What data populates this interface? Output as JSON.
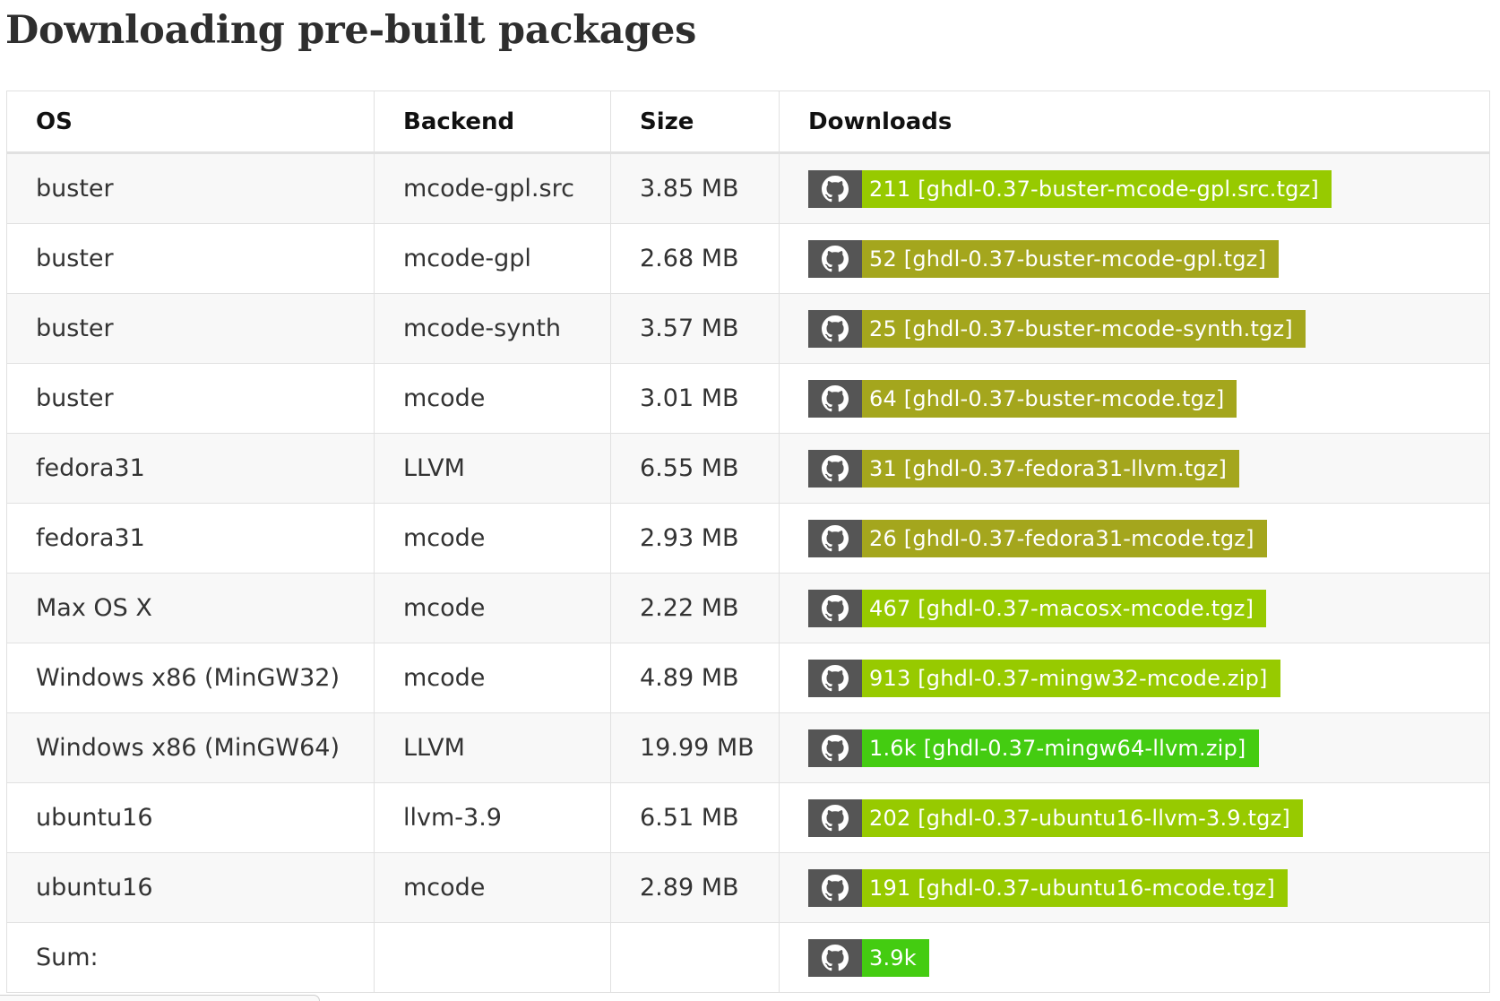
{
  "page": {
    "title": "Downloading pre-built packages"
  },
  "table": {
    "headers": {
      "os": "OS",
      "backend": "Backend",
      "size": "Size",
      "downloads": "Downloads"
    },
    "rows": [
      {
        "os": "buster",
        "backend": "mcode-gpl.src",
        "size": "3.85 MB",
        "badge": {
          "icon": "github-icon",
          "text": "211 [ghdl-0.37-buster-mcode-gpl.src.tgz]",
          "color": "#97ca00"
        }
      },
      {
        "os": "buster",
        "backend": "mcode-gpl",
        "size": "2.68 MB",
        "badge": {
          "icon": "github-icon",
          "text": "52 [ghdl-0.37-buster-mcode-gpl.tgz]",
          "color": "#a4a61d"
        }
      },
      {
        "os": "buster",
        "backend": "mcode-synth",
        "size": "3.57 MB",
        "badge": {
          "icon": "github-icon",
          "text": "25 [ghdl-0.37-buster-mcode-synth.tgz]",
          "color": "#a4a61d"
        }
      },
      {
        "os": "buster",
        "backend": "mcode",
        "size": "3.01 MB",
        "badge": {
          "icon": "github-icon",
          "text": "64 [ghdl-0.37-buster-mcode.tgz]",
          "color": "#a4a61d"
        }
      },
      {
        "os": "fedora31",
        "backend": "LLVM",
        "size": "6.55 MB",
        "badge": {
          "icon": "github-icon",
          "text": "31 [ghdl-0.37-fedora31-llvm.tgz]",
          "color": "#a4a61d"
        }
      },
      {
        "os": "fedora31",
        "backend": "mcode",
        "size": "2.93 MB",
        "badge": {
          "icon": "github-icon",
          "text": "26 [ghdl-0.37-fedora31-mcode.tgz]",
          "color": "#a4a61d"
        }
      },
      {
        "os": "Max OS X",
        "backend": "mcode",
        "size": "2.22 MB",
        "badge": {
          "icon": "github-icon",
          "text": "467 [ghdl-0.37-macosx-mcode.tgz]",
          "color": "#97ca00"
        }
      },
      {
        "os": "Windows x86 (MinGW32)",
        "backend": "mcode",
        "size": "4.89 MB",
        "badge": {
          "icon": "github-icon",
          "text": "913 [ghdl-0.37-mingw32-mcode.zip]",
          "color": "#97ca00"
        }
      },
      {
        "os": "Windows x86 (MinGW64)",
        "backend": "LLVM",
        "size": "19.99 MB",
        "badge": {
          "icon": "github-icon",
          "text": "1.6k [ghdl-0.37-mingw64-llvm.zip]",
          "color": "#4c1"
        }
      },
      {
        "os": "ubuntu16",
        "backend": "llvm-3.9",
        "size": "6.51 MB",
        "badge": {
          "icon": "github-icon",
          "text": "202 [ghdl-0.37-ubuntu16-llvm-3.9.tgz]",
          "color": "#97ca00"
        }
      },
      {
        "os": "ubuntu16",
        "backend": "mcode",
        "size": "2.89 MB",
        "badge": {
          "icon": "github-icon",
          "text": "191 [ghdl-0.37-ubuntu16-mcode.tgz]",
          "color": "#97ca00"
        }
      },
      {
        "os": "Sum:",
        "backend": "",
        "size": "",
        "badge": {
          "icon": "github-icon",
          "text": "3.9k",
          "color": "#4c1"
        }
      }
    ]
  },
  "colors": {
    "badge_icon_bg": "#555555",
    "row_stripe": "#f8f8f8",
    "border": "#e1e1e1"
  }
}
